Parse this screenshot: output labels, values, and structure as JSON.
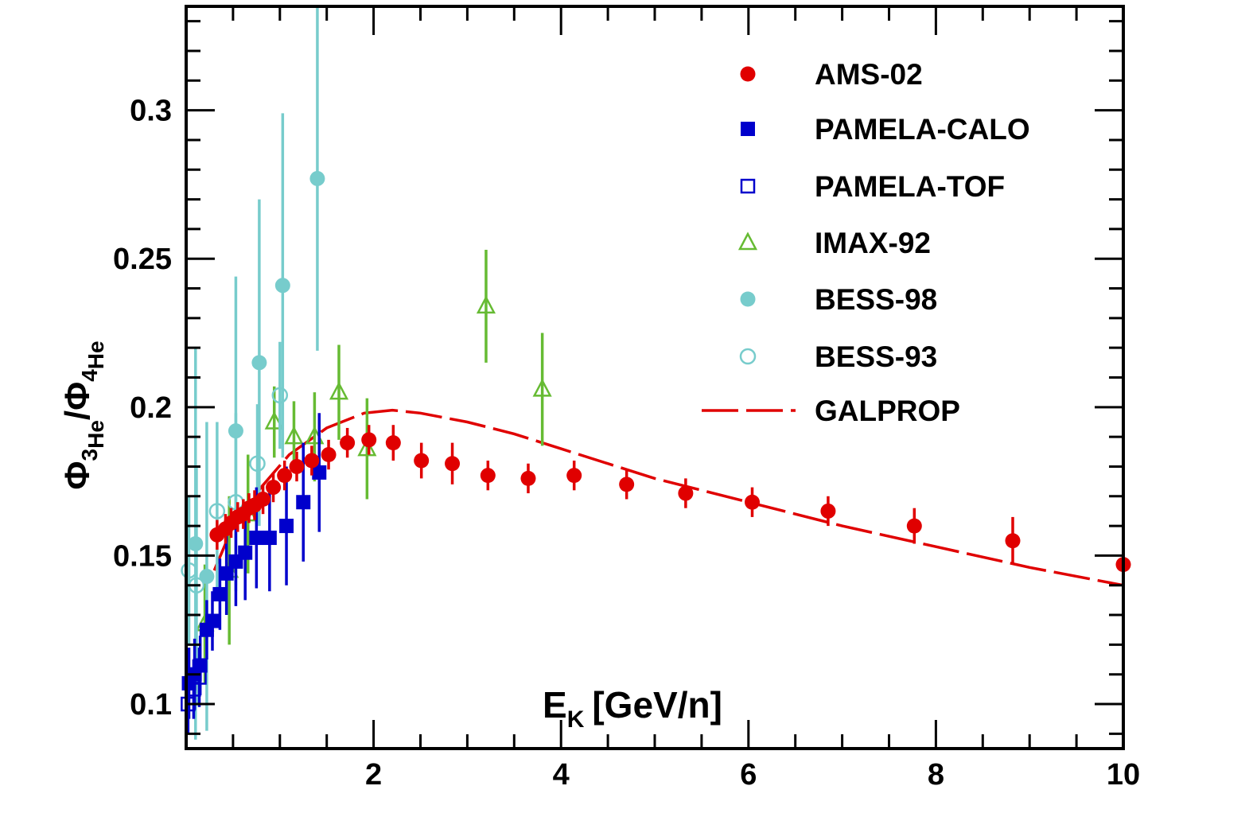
{
  "chart_data": {
    "type": "scatter",
    "xlabel": {
      "main": "E",
      "sub": "K",
      "unit": "[GeV/n]"
    },
    "ylabel": {
      "phi": "Φ",
      "num_sup": "3",
      "num_sub": "He",
      "slash": "/",
      "den_sup": "4",
      "den_sub": "He"
    },
    "xlim": [
      0,
      10
    ],
    "ylim": [
      0.085,
      0.335
    ],
    "x_ticks": [
      2,
      4,
      6,
      8,
      10
    ],
    "y_ticks": [
      0.1,
      0.15,
      0.2,
      0.25,
      0.3
    ],
    "x_tick_labels": [
      "2",
      "4",
      "6",
      "8",
      "10"
    ],
    "y_tick_labels": [
      "0.1",
      "0.15",
      "0.2",
      "0.25",
      "0.3"
    ],
    "legend_position": "top-right",
    "series": [
      {
        "name": "AMS-02",
        "marker": "filled-circle",
        "color": "#e00000",
        "points": [
          {
            "x": 0.33,
            "y": 0.157,
            "e": 0.005
          },
          {
            "x": 0.42,
            "y": 0.159,
            "e": 0.005
          },
          {
            "x": 0.48,
            "y": 0.161,
            "e": 0.005
          },
          {
            "x": 0.55,
            "y": 0.163,
            "e": 0.005
          },
          {
            "x": 0.61,
            "y": 0.164,
            "e": 0.005
          },
          {
            "x": 0.67,
            "y": 0.166,
            "e": 0.005
          },
          {
            "x": 0.73,
            "y": 0.167,
            "e": 0.005
          },
          {
            "x": 0.82,
            "y": 0.169,
            "e": 0.005
          },
          {
            "x": 0.93,
            "y": 0.173,
            "e": 0.005
          },
          {
            "x": 1.05,
            "y": 0.177,
            "e": 0.005
          },
          {
            "x": 1.18,
            "y": 0.18,
            "e": 0.005
          },
          {
            "x": 1.34,
            "y": 0.182,
            "e": 0.005
          },
          {
            "x": 1.52,
            "y": 0.184,
            "e": 0.005
          },
          {
            "x": 1.72,
            "y": 0.188,
            "e": 0.005
          },
          {
            "x": 1.95,
            "y": 0.189,
            "e": 0.005
          },
          {
            "x": 2.21,
            "y": 0.188,
            "e": 0.006
          },
          {
            "x": 2.51,
            "y": 0.182,
            "e": 0.006
          },
          {
            "x": 2.84,
            "y": 0.181,
            "e": 0.007
          },
          {
            "x": 3.22,
            "y": 0.177,
            "e": 0.005
          },
          {
            "x": 3.65,
            "y": 0.176,
            "e": 0.005
          },
          {
            "x": 4.14,
            "y": 0.177,
            "e": 0.005
          },
          {
            "x": 4.7,
            "y": 0.174,
            "e": 0.005
          },
          {
            "x": 5.33,
            "y": 0.171,
            "e": 0.005
          },
          {
            "x": 6.04,
            "y": 0.168,
            "e": 0.005
          },
          {
            "x": 6.85,
            "y": 0.165,
            "e": 0.005
          },
          {
            "x": 7.77,
            "y": 0.16,
            "e": 0.006
          },
          {
            "x": 8.82,
            "y": 0.155,
            "e": 0.008
          },
          {
            "x": 10.0,
            "y": 0.147,
            "e": 0.009
          }
        ]
      },
      {
        "name": "PAMELA-CALO",
        "marker": "filled-square",
        "color": "#0000cc",
        "points": [
          {
            "x": 0.03,
            "y": 0.107,
            "e": 0.012
          },
          {
            "x": 0.09,
            "y": 0.11,
            "e": 0.012
          },
          {
            "x": 0.15,
            "y": 0.113,
            "e": 0.01
          },
          {
            "x": 0.22,
            "y": 0.125,
            "e": 0.01
          },
          {
            "x": 0.28,
            "y": 0.128,
            "e": 0.01
          },
          {
            "x": 0.36,
            "y": 0.137,
            "e": 0.012
          },
          {
            "x": 0.43,
            "y": 0.144,
            "e": 0.014
          },
          {
            "x": 0.53,
            "y": 0.148,
            "e": 0.015
          },
          {
            "x": 0.63,
            "y": 0.151,
            "e": 0.016
          },
          {
            "x": 0.75,
            "y": 0.156,
            "e": 0.017
          },
          {
            "x": 0.89,
            "y": 0.156,
            "e": 0.018
          },
          {
            "x": 1.07,
            "y": 0.16,
            "e": 0.02
          },
          {
            "x": 1.25,
            "y": 0.168,
            "e": 0.02
          },
          {
            "x": 1.42,
            "y": 0.178,
            "e": 0.02
          }
        ]
      },
      {
        "name": "PAMELA-TOF",
        "marker": "open-square",
        "color": "#0000cc",
        "points": [
          {
            "x": 0.02,
            "y": 0.1,
            "e": 0.01
          },
          {
            "x": 0.08,
            "y": 0.105,
            "e": 0.01
          },
          {
            "x": 0.14,
            "y": 0.109,
            "e": 0.01
          }
        ]
      },
      {
        "name": "IMAX-92",
        "marker": "open-triangle",
        "color": "#66bb33",
        "points": [
          {
            "x": 0.2,
            "y": 0.127,
            "e": 0.02
          },
          {
            "x": 0.46,
            "y": 0.145,
            "e": 0.025
          },
          {
            "x": 0.66,
            "y": 0.164,
            "e": 0.02
          },
          {
            "x": 0.94,
            "y": 0.195,
            "e": 0.012
          },
          {
            "x": 1.15,
            "y": 0.19,
            "e": 0.012
          },
          {
            "x": 1.37,
            "y": 0.19,
            "e": 0.015
          },
          {
            "x": 1.63,
            "y": 0.205,
            "e": 0.016
          },
          {
            "x": 1.93,
            "y": 0.186,
            "e": 0.017
          },
          {
            "x": 3.2,
            "y": 0.234,
            "e": 0.019
          },
          {
            "x": 3.8,
            "y": 0.206,
            "e": 0.019
          }
        ]
      },
      {
        "name": "BESS-98",
        "marker": "filled-circle",
        "color": "#77cccc",
        "points": [
          {
            "x": 0.1,
            "y": 0.154,
            "e": 0.066
          },
          {
            "x": 0.22,
            "y": 0.143,
            "e": 0.052
          },
          {
            "x": 0.53,
            "y": 0.192,
            "e": 0.052
          },
          {
            "x": 0.78,
            "y": 0.215,
            "e": 0.055
          },
          {
            "x": 1.03,
            "y": 0.241,
            "e": 0.058
          },
          {
            "x": 1.4,
            "y": 0.277,
            "e": 0.058
          }
        ]
      },
      {
        "name": "BESS-93",
        "marker": "open-circle",
        "color": "#77cccc",
        "points": [
          {
            "x": 0.03,
            "y": 0.145,
            "e": 0.025
          },
          {
            "x": 0.11,
            "y": 0.14,
            "e": 0.04
          },
          {
            "x": 0.33,
            "y": 0.165,
            "e": 0.03
          },
          {
            "x": 0.53,
            "y": 0.168,
            "e": 0.03
          },
          {
            "x": 0.76,
            "y": 0.181,
            "e": 0.02
          },
          {
            "x": 1.0,
            "y": 0.204,
            "e": 0.018
          }
        ]
      },
      {
        "name": "GALPROP",
        "marker": "dashed-line",
        "color": "#e00000",
        "points": [
          {
            "x": 0.3,
            "y": 0.145
          },
          {
            "x": 0.5,
            "y": 0.16
          },
          {
            "x": 0.8,
            "y": 0.173
          },
          {
            "x": 1.1,
            "y": 0.184
          },
          {
            "x": 1.5,
            "y": 0.193
          },
          {
            "x": 1.9,
            "y": 0.198
          },
          {
            "x": 2.2,
            "y": 0.199
          },
          {
            "x": 2.5,
            "y": 0.198
          },
          {
            "x": 3.0,
            "y": 0.195
          },
          {
            "x": 3.5,
            "y": 0.191
          },
          {
            "x": 4.0,
            "y": 0.186
          },
          {
            "x": 5.0,
            "y": 0.176
          },
          {
            "x": 6.0,
            "y": 0.168
          },
          {
            "x": 7.0,
            "y": 0.16
          },
          {
            "x": 8.0,
            "y": 0.153
          },
          {
            "x": 9.0,
            "y": 0.146
          },
          {
            "x": 10.0,
            "y": 0.14
          }
        ]
      }
    ]
  }
}
